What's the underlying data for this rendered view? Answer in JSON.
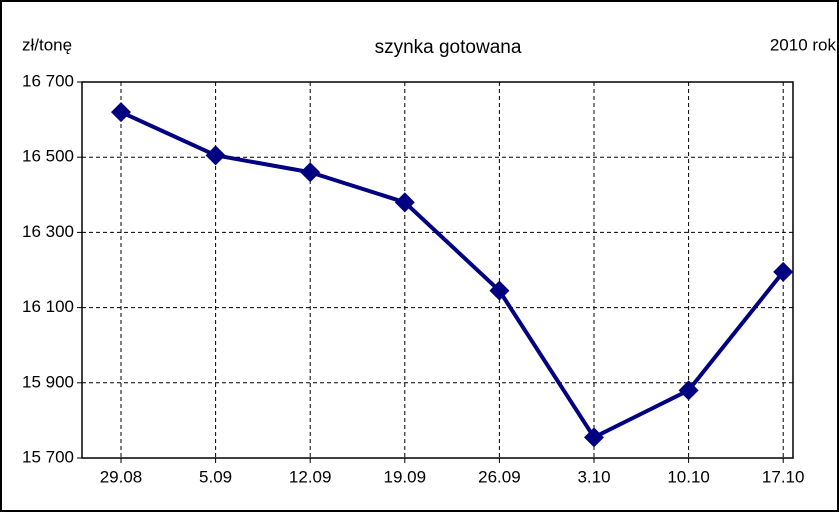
{
  "chart_data": {
    "type": "line",
    "title": "szynka gotowana",
    "ylabel": "zł/tonę",
    "annotation": "2010 rok",
    "categories": [
      "29.08",
      "5.09",
      "12.09",
      "19.09",
      "26.09",
      "3.10",
      "10.10",
      "17.10"
    ],
    "series": [
      {
        "name": "szynka gotowana",
        "color": "#000080",
        "values": [
          16620,
          16505,
          16460,
          16380,
          16145,
          15755,
          15880,
          16195
        ]
      }
    ],
    "ylim": [
      15700,
      16700
    ],
    "yticks": [
      {
        "value": 15700,
        "label": "15 700"
      },
      {
        "value": 15900,
        "label": "15 900"
      },
      {
        "value": 16100,
        "label": "16 100"
      },
      {
        "value": 16300,
        "label": "16 300"
      },
      {
        "value": 16500,
        "label": "16 500"
      },
      {
        "value": 16700,
        "label": "16 700"
      }
    ],
    "grid": true
  }
}
